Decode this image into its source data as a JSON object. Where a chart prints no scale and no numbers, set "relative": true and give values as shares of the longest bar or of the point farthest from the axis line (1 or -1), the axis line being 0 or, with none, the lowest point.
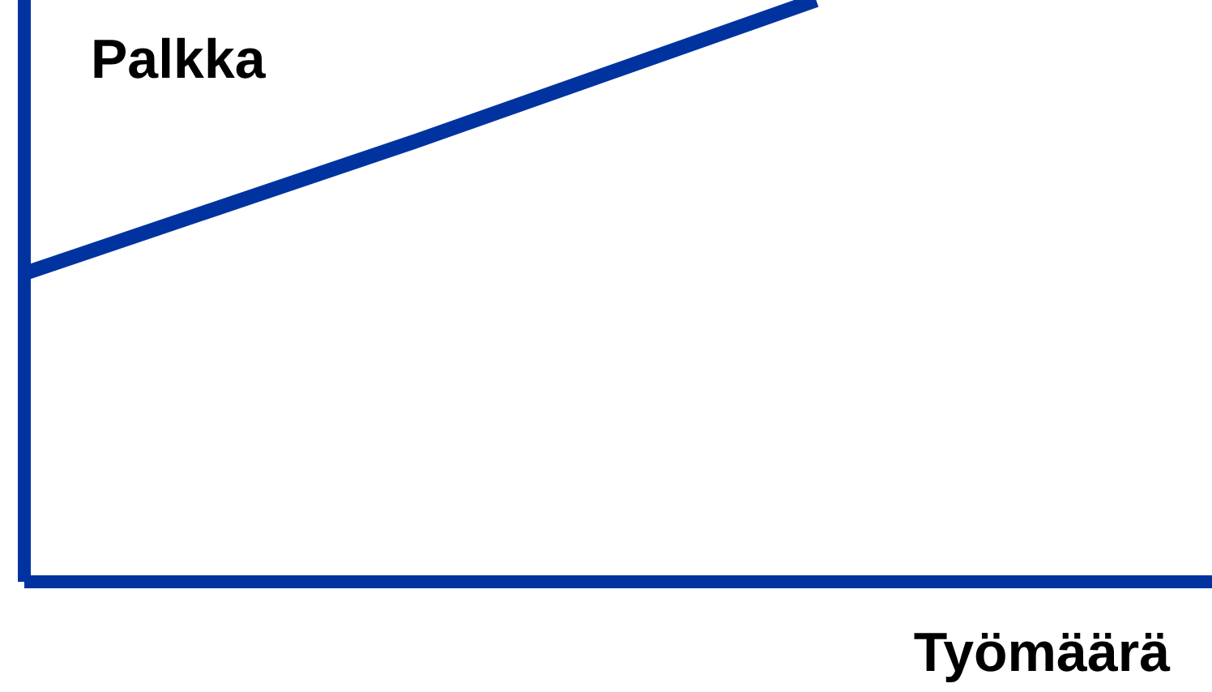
{
  "chart_data": {
    "type": "line",
    "relative": true,
    "xlabel": "Työmäärä",
    "ylabel": "Palkka",
    "categories": [
      null,
      null,
      null,
      null
    ],
    "series": [
      {
        "color": "#0033a0",
        "values": [
          0.53,
          0.76,
          1,
          null
        ]
      }
    ],
    "marker": "none",
    "line_style": "solid",
    "grid": false,
    "legend": false
  }
}
